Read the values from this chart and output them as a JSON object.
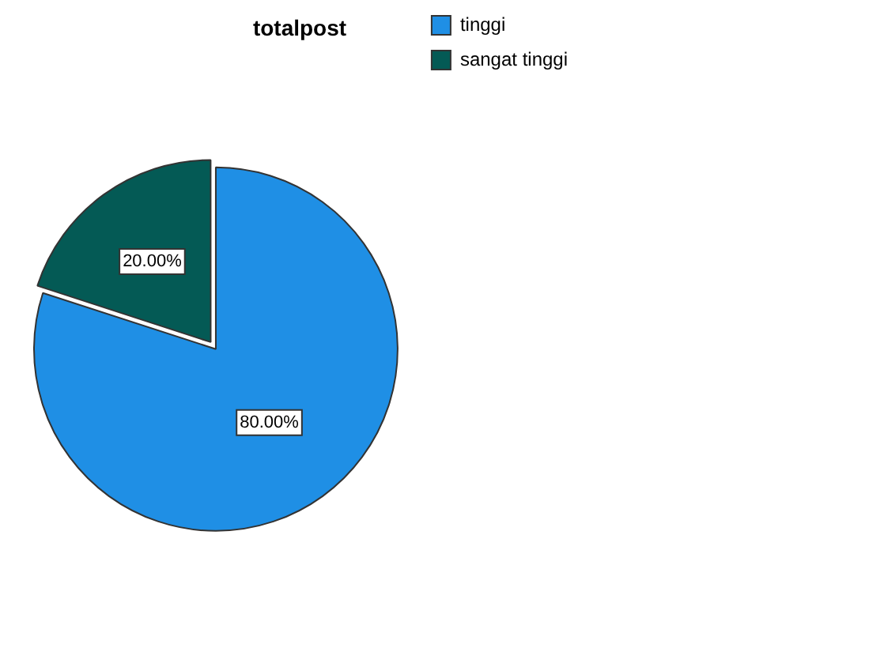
{
  "chart_data": {
    "type": "pie",
    "title": "totalpost",
    "categories": [
      "tinggi",
      "sangat tinggi"
    ],
    "values": [
      80,
      20
    ],
    "colors": [
      "#1f8fe5",
      "#045a55"
    ],
    "value_labels": [
      "80.00%",
      "20.00%"
    ],
    "legend": "top right"
  }
}
